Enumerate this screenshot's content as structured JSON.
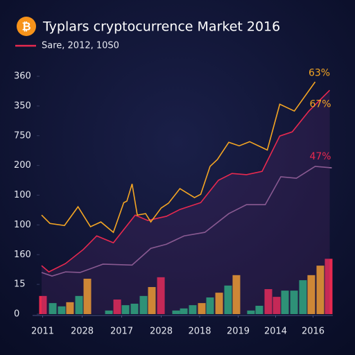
{
  "chart_data": {
    "type": "combo",
    "icon": "₿",
    "title": "Typlars cryptocurrence Market 2016",
    "xlim": [
      0,
      28.2
    ],
    "xticks": [
      {
        "value": 0.3,
        "label": "2011"
      },
      {
        "value": 4.1,
        "label": "2028"
      },
      {
        "value": 7.9,
        "label": "2017"
      },
      {
        "value": 11.7,
        "label": "2028"
      },
      {
        "value": 15.4,
        "label": "2018"
      },
      {
        "value": 19.1,
        "label": "2019"
      },
      {
        "value": 22.7,
        "label": "2014"
      },
      {
        "value": 26.3,
        "label": "2016"
      }
    ],
    "ylim": [
      0,
      8
    ],
    "yticks": [
      0,
      {
        "value": 1,
        "label": "15"
      },
      {
        "value": 2,
        "label": "160"
      },
      {
        "value": 3,
        "label": "100"
      },
      {
        "value": 4,
        "label": "100"
      },
      {
        "value": 5,
        "label": "200"
      },
      {
        "value": 6,
        "label": "750"
      },
      {
        "value": 7,
        "label": "350"
      },
      {
        "value": 8,
        "label": "360"
      }
    ],
    "series": [
      {
        "type": "bar",
        "x": [
          0.33,
          1.27,
          2.13,
          2.93,
          3.8,
          4.6,
          6.67,
          7.47,
          8.27,
          9.13,
          10,
          10.8,
          11.67,
          13.13,
          13.87,
          14.73,
          15.6,
          16.4,
          17.27,
          18.13,
          18.93,
          20.33,
          21.13,
          22,
          22.8,
          23.6,
          24.47,
          25.33,
          26.13,
          27,
          27.8
        ],
        "values": [
          0.61,
          0.37,
          0.26,
          0.4,
          0.61,
          1.19,
          0.12,
          0.49,
          0.3,
          0.35,
          0.61,
          0.91,
          1.24,
          0.12,
          0.19,
          0.3,
          0.37,
          0.56,
          0.72,
          0.96,
          1.31,
          0.12,
          0.28,
          0.84,
          0.58,
          0.79,
          0.79,
          1.14,
          1.31,
          1.63,
          1.86
        ],
        "colors": [
          "#e8294f",
          "#1fb37a",
          "#1fb37a",
          "#f5a623",
          "#1fb37a",
          "#f5a623",
          "#1fb37a",
          "#e8294f",
          "#1fb37a",
          "#1fb37a",
          "#1fb37a",
          "#f5a623",
          "#e8294f",
          "#1fb37a",
          "#1fb37a",
          "#1fb37a",
          "#f5a623",
          "#1fb37a",
          "#f5a623",
          "#1fb37a",
          "#f5a623",
          "#1fb37a",
          "#1fb37a",
          "#e8294f",
          "#e8294f",
          "#1fb37a",
          "#1fb37a",
          "#1fb37a",
          "#f5a623",
          "#f5a623",
          "#e8294f"
        ]
      },
      {
        "type": "line",
        "color": "#9a6a9e",
        "x": [
          0.2,
          1.2,
          2.5,
          3.9,
          6.1,
          8.9,
          10.7,
          12.2,
          13.9,
          15.9,
          18.2,
          19.9,
          21.7,
          23.2,
          24.7,
          26.5,
          28.1
        ],
        "values": [
          1.4,
          1.28,
          1.42,
          1.4,
          1.68,
          1.65,
          2.21,
          2.35,
          2.63,
          2.75,
          3.38,
          3.68,
          3.68,
          4.62,
          4.57,
          4.97,
          4.92
        ]
      },
      {
        "type": "line",
        "name": "Sare, 2012, 10S0",
        "color": "#e8294f",
        "area": true,
        "x": [
          0.2,
          0.9,
          2.5,
          4.2,
          5.5,
          7.1,
          9.2,
          10.4,
          12.2,
          13.5,
          15.5,
          17.2,
          18.5,
          19.9,
          21.4,
          23.1,
          24.3,
          25.9,
          27.9
        ],
        "values": [
          1.63,
          1.42,
          1.7,
          2.17,
          2.63,
          2.4,
          3.33,
          3.15,
          3.29,
          3.52,
          3.75,
          4.5,
          4.73,
          4.69,
          4.8,
          5.99,
          6.13,
          6.83,
          7.53
        ]
      },
      {
        "type": "line",
        "color": "#f5a623",
        "x": [
          0.2,
          1,
          2.4,
          3.7,
          4.9,
          5.9,
          7.1,
          8.1,
          8.4,
          8.9,
          9.4,
          10.2,
          10.7,
          11.7,
          12.4,
          13.5,
          14.9,
          15.5,
          16.4,
          17.1,
          18.2,
          19.2,
          20.2,
          21.9,
          23.1,
          24.5,
          26.5
        ],
        "values": [
          3.33,
          3.05,
          2.98,
          3.61,
          2.94,
          3.1,
          2.75,
          3.75,
          3.8,
          4.38,
          3.33,
          3.38,
          3.1,
          3.57,
          3.73,
          4.22,
          3.92,
          4.03,
          4.97,
          5.2,
          5.78,
          5.66,
          5.8,
          5.52,
          7.06,
          6.83,
          7.81
        ]
      }
    ],
    "annotations": [
      {
        "text": "63%",
        "color": "#f5a623",
        "x": 26.9,
        "y": 8.1
      },
      {
        "text": "67%",
        "color": "#f5a623",
        "x": 27,
        "y": 7.05
      },
      {
        "text": "47%",
        "color": "#e8294f",
        "x": 27,
        "y": 5.3
      }
    ],
    "legend": "top-left"
  }
}
